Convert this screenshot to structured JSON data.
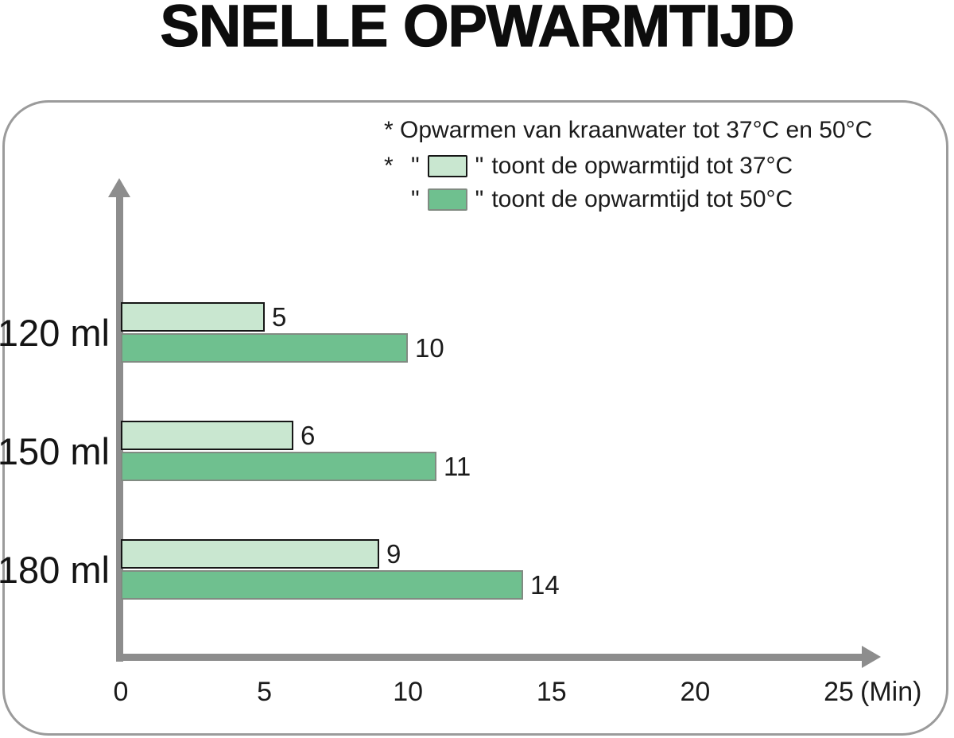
{
  "title": "SNELLE OPWARMTIJD",
  "chart_data": {
    "type": "bar",
    "orientation": "horizontal",
    "title": "SNELLE OPWARMTIJD",
    "categories": [
      "120 ml",
      "150 ml",
      "180 ml"
    ],
    "series": [
      {
        "name": "opwarmtijd tot 37C",
        "color": "#c9e7d0",
        "border_color": "#161616",
        "values": [
          5,
          6,
          9
        ]
      },
      {
        "name": "opwarmtijd tot 50C",
        "color": "#6fc08f",
        "border_color": "#818b82",
        "values": [
          10,
          11,
          14
        ]
      }
    ],
    "xticks": [
      "0",
      "5",
      "10",
      "15",
      "20",
      "25"
    ],
    "xtick_values": [
      0,
      5,
      10,
      15,
      20,
      25
    ],
    "xlim": [
      0,
      25
    ],
    "x_unit_label": "(Min)",
    "grid": false,
    "legend_position": "top-right",
    "legend": {
      "note": "* Opwarmen van kraanwater tot 37°C en 50°C",
      "items": [
        {
          "prefix": "*",
          "quote": "\"",
          "label": "toont de opwarmtijd tot 37°C"
        },
        {
          "prefix": "",
          "quote": "\"",
          "label": "toont de opwarmtijd tot 50°C"
        }
      ]
    },
    "axis_color": "#8d8d8d",
    "frame_border_color": "#9b9b9b"
  }
}
